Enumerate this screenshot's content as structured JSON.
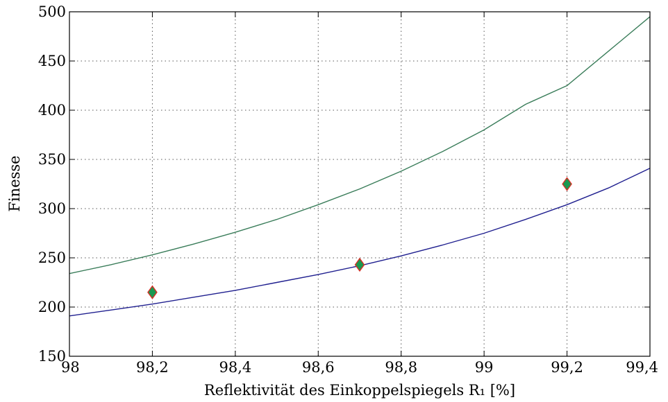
{
  "chart_data": {
    "type": "line",
    "xlabel": "Reflektivität des Einkoppelspiegels R₁ [%]",
    "ylabel": "Finesse",
    "xlim": [
      98,
      99.4
    ],
    "ylim": [
      150,
      500
    ],
    "xticks": [
      98,
      98.2,
      98.4,
      98.6,
      98.8,
      99,
      99.2,
      99.4
    ],
    "xtick_labels": [
      "98",
      "98,2",
      "98,4",
      "98,6",
      "98,8",
      "99",
      "99,2",
      "99,4"
    ],
    "yticks": [
      150,
      200,
      250,
      300,
      350,
      400,
      450,
      500
    ],
    "ytick_labels": [
      "150",
      "200",
      "250",
      "300",
      "350",
      "400",
      "450",
      "500"
    ],
    "grid": true,
    "series": [
      {
        "type": "line",
        "color": "#3a7d5a",
        "x": [
          98.0,
          98.1,
          98.2,
          98.3,
          98.4,
          98.5,
          98.6,
          98.7,
          98.8,
          98.9,
          99.0,
          99.1,
          99.2,
          99.3,
          99.4
        ],
        "y": [
          234,
          243,
          253,
          264,
          276,
          289,
          304,
          320,
          338,
          358,
          380,
          406,
          425,
          460,
          495
        ]
      },
      {
        "type": "line",
        "color": "#1f1f8f",
        "x": [
          98.0,
          98.1,
          98.2,
          98.3,
          98.4,
          98.5,
          98.6,
          98.7,
          98.8,
          98.9,
          99.0,
          99.1,
          99.2,
          99.3,
          99.4
        ],
        "y": [
          191,
          197,
          203,
          210,
          217,
          225,
          233,
          242,
          252,
          263,
          275,
          289,
          304,
          321,
          341
        ]
      },
      {
        "type": "scatter",
        "marker": "diamond",
        "fill": "#1a9850",
        "edge": "#d73027",
        "x": [
          98.2,
          98.7,
          99.2
        ],
        "y": [
          215,
          243,
          325
        ]
      }
    ]
  }
}
